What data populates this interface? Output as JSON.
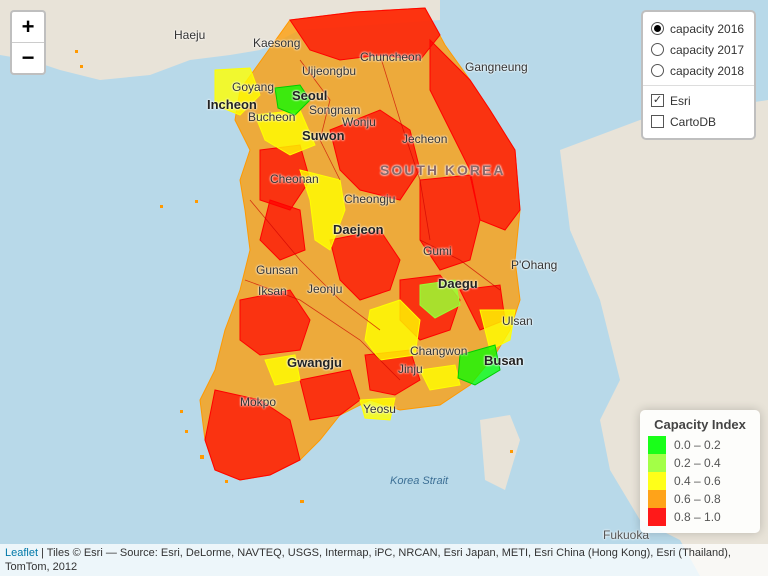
{
  "zoom": {
    "in": "+",
    "out": "−"
  },
  "layers": {
    "base": [
      {
        "label": "capacity 2016",
        "checked": true
      },
      {
        "label": "capacity 2017",
        "checked": false
      },
      {
        "label": "capacity 2018",
        "checked": false
      }
    ],
    "overlays": [
      {
        "label": "Esri",
        "checked": true
      },
      {
        "label": "CartoDB",
        "checked": false
      }
    ]
  },
  "legend": {
    "title": "Capacity Index",
    "items": [
      {
        "label": "0.0 – 0.2",
        "color": "#00ff00"
      },
      {
        "label": "0.2 – 0.4",
        "color": "#99ff33"
      },
      {
        "label": "0.4 – 0.6",
        "color": "#ffff00"
      },
      {
        "label": "0.6 – 0.8",
        "color": "#ff9900"
      },
      {
        "label": "0.8 – 1.0",
        "color": "#ff0000"
      }
    ]
  },
  "map_labels": {
    "haeju": "Haeju",
    "kaesong": "Kaesong",
    "chuncheon": "Chuncheon",
    "uijeongbu": "Uijeongbu",
    "gangneung": "Gangneung",
    "goyang": "Goyang",
    "seoul": "Seoul",
    "incheon": "Incheon",
    "songnam": "Songnam",
    "bucheon": "Bucheon",
    "suwon": "Suwon",
    "wonju": "Wonju",
    "jecheon": "Jecheon",
    "south_korea": "SOUTH KOREA",
    "cheonan": "Cheonan",
    "cheongju": "Cheongju",
    "daejeon": "Daejeon",
    "gumi": "Gumi",
    "pohang": "P'Ohang",
    "daegu": "Daegu",
    "gunsan": "Gunsan",
    "iksan": "Iksan",
    "jeonju": "Jeonju",
    "ulsan": "Ulsan",
    "changwon": "Changwon",
    "busan": "Busan",
    "gwangju": "Gwangju",
    "jinju": "Jinju",
    "yeosu": "Yeosu",
    "mokpo": "Mokpo",
    "korea_strait": "Korea Strait",
    "fukuoka": "Fukuoka"
  },
  "attribution": {
    "link": "Leaflet",
    "text": " | Tiles © Esri — Source: Esri, DeLorme, NAVTEQ, USGS, Intermap, iPC, NRCAN, Esri Japan, METI, Esri China (Hong Kong), Esri (Thailand), TomTom, 2012"
  }
}
